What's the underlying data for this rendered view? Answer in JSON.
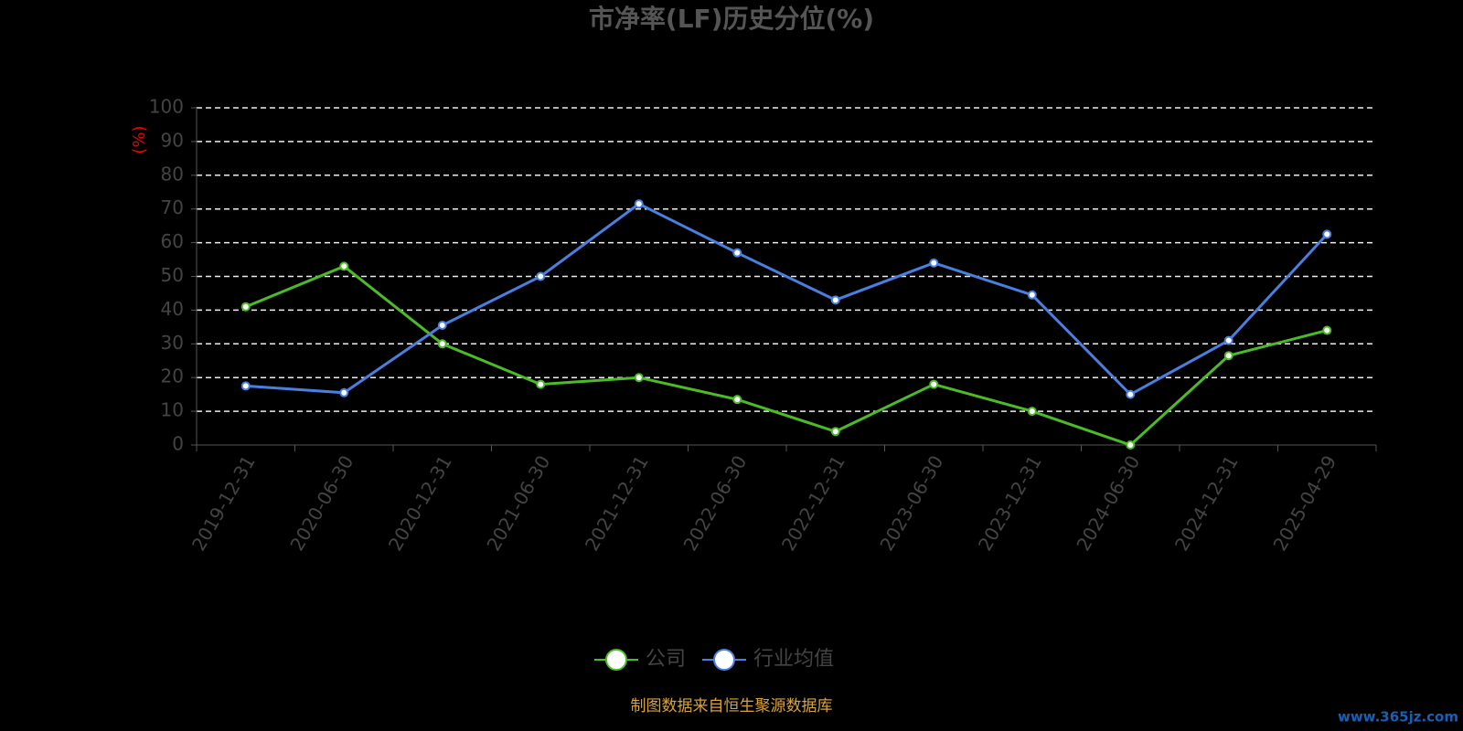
{
  "chart_data": {
    "type": "line",
    "title": "市净率(LF)历史分位(%)",
    "y_label": "(%)",
    "categories": [
      "2019-12-31",
      "2020-06-30",
      "2020-12-31",
      "2021-06-30",
      "2021-12-31",
      "2022-06-30",
      "2022-12-31",
      "2023-06-30",
      "2023-12-31",
      "2024-06-30",
      "2024-12-31",
      "2025-04-29"
    ],
    "series": [
      {
        "name": "公司",
        "color": "#4cbb28",
        "values": [
          41,
          53,
          30,
          18,
          20,
          13.5,
          4,
          18,
          10,
          0,
          26.5,
          34
        ]
      },
      {
        "name": "行业均值",
        "color": "#4a7fe0",
        "values": [
          17.5,
          15.5,
          35.5,
          50,
          71.5,
          57,
          43,
          54,
          44.5,
          15,
          31,
          62.5
        ]
      }
    ],
    "ylim": [
      0,
      100
    ],
    "yticks": [
      0,
      10,
      20,
      30,
      40,
      50,
      60,
      70,
      80,
      90,
      100
    ],
    "grid": true,
    "source": "制图数据来自恒生聚源数据库",
    "watermark": "www.365jz.com"
  }
}
